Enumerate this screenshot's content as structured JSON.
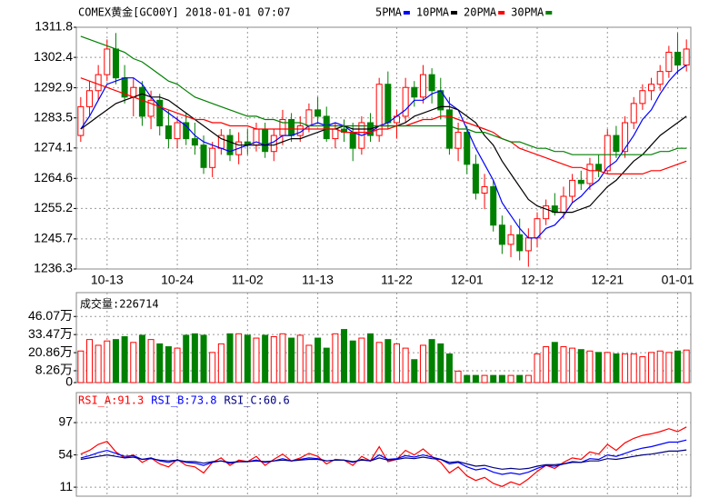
{
  "chart_data": [
    {
      "type": "candlestick",
      "title": "COMEX黄金[GC00Y] 2018-01-01 07:07",
      "categories": [
        null,
        null,
        null,
        "10-13",
        null,
        null,
        null,
        null,
        null,
        null,
        null,
        "10-24",
        null,
        null,
        null,
        null,
        null,
        null,
        null,
        "11-02",
        null,
        null,
        null,
        null,
        null,
        null,
        null,
        "11-13",
        null,
        null,
        null,
        null,
        null,
        null,
        null,
        null,
        "11-22",
        null,
        null,
        null,
        null,
        null,
        null,
        null,
        "12-01",
        null,
        null,
        null,
        null,
        null,
        null,
        null,
        "12-12",
        null,
        null,
        null,
        null,
        null,
        null,
        null,
        "12-21",
        null,
        null,
        null,
        null,
        null,
        null,
        null,
        "01-01",
        null
      ],
      "open": [
        1278,
        1287,
        1292,
        1297,
        1305,
        1296,
        1290,
        1293,
        1284,
        1289,
        1281,
        1277,
        1282,
        1277,
        1275,
        1268,
        1274,
        1278,
        1272,
        1276,
        1275,
        1280,
        1273,
        1278,
        1283,
        1278,
        1281,
        1286,
        1284,
        1277,
        1280,
        1279,
        1274,
        1282,
        1278,
        1294,
        1282,
        1284,
        1293,
        1290,
        1297,
        1292,
        1286,
        1274,
        1279,
        1269,
        1260,
        1262,
        1250,
        1244,
        1247,
        1242,
        1246,
        1252,
        1256,
        1254,
        1259,
        1264,
        1263,
        1269,
        1267,
        1278,
        1273,
        1282,
        1288,
        1292,
        1294,
        1298,
        1304,
        1300
      ],
      "high": [
        1290,
        1295,
        1300,
        1308,
        1310,
        1300,
        1296,
        1295,
        1292,
        1291,
        1286,
        1284,
        1285,
        1282,
        1278,
        1276,
        1280,
        1280,
        1279,
        1280,
        1282,
        1282,
        1280,
        1286,
        1285,
        1284,
        1288,
        1290,
        1287,
        1282,
        1283,
        1282,
        1284,
        1285,
        1296,
        1298,
        1286,
        1296,
        1295,
        1300,
        1299,
        1296,
        1290,
        1282,
        1281,
        1272,
        1266,
        1264,
        1253,
        1250,
        1252,
        1249,
        1254,
        1258,
        1260,
        1262,
        1266,
        1267,
        1271,
        1272,
        1280,
        1281,
        1284,
        1290,
        1294,
        1296,
        1300,
        1306,
        1310,
        1308
      ],
      "low": [
        1276,
        1284,
        1289,
        1295,
        1294,
        1288,
        1284,
        1281,
        1280,
        1278,
        1274,
        1274,
        1275,
        1272,
        1266,
        1265,
        1272,
        1270,
        1269,
        1272,
        1273,
        1271,
        1270,
        1275,
        1276,
        1276,
        1279,
        1282,
        1276,
        1274,
        1276,
        1270,
        1272,
        1276,
        1276,
        1280,
        1277,
        1282,
        1287,
        1288,
        1288,
        1283,
        1272,
        1270,
        1266,
        1258,
        1255,
        1248,
        1241,
        1240,
        1239,
        1237,
        1243,
        1250,
        1253,
        1252,
        1257,
        1261,
        1261,
        1265,
        1266,
        1271,
        1271,
        1280,
        1286,
        1289,
        1292,
        1296,
        1297,
        1298
      ],
      "close": [
        1287,
        1292,
        1297,
        1305,
        1296,
        1290,
        1293,
        1284,
        1289,
        1281,
        1277,
        1282,
        1277,
        1275,
        1268,
        1274,
        1278,
        1272,
        1276,
        1275,
        1280,
        1273,
        1278,
        1283,
        1278,
        1281,
        1286,
        1284,
        1277,
        1280,
        1279,
        1274,
        1282,
        1278,
        1294,
        1282,
        1284,
        1293,
        1290,
        1297,
        1292,
        1286,
        1274,
        1279,
        1269,
        1260,
        1262,
        1250,
        1244,
        1247,
        1242,
        1246,
        1252,
        1256,
        1254,
        1259,
        1264,
        1263,
        1269,
        1267,
        1278,
        1273,
        1282,
        1288,
        1292,
        1294,
        1298,
        1304,
        1300,
        1305
      ],
      "up_color": "#ff0000",
      "down_color": "#008000",
      "series": [
        {
          "name": "5PMA",
          "color": "#0000ff",
          "values": [
            1280,
            1284,
            1289,
            1294,
            1295,
            1296,
            1296,
            1294,
            1290,
            1287,
            1285,
            1283,
            1281,
            1278,
            1276,
            1275,
            1274,
            1273,
            1274,
            1275,
            1276,
            1275,
            1276,
            1278,
            1278,
            1279,
            1281,
            1282,
            1281,
            1282,
            1281,
            1279,
            1278,
            1279,
            1281,
            1282,
            1284,
            1286,
            1289,
            1289,
            1291,
            1292,
            1288,
            1286,
            1280,
            1274,
            1269,
            1264,
            1257,
            1253,
            1249,
            1246,
            1246,
            1249,
            1250,
            1253,
            1257,
            1259,
            1262,
            1264,
            1268,
            1270,
            1274,
            1278,
            1283,
            1286,
            1291,
            1295,
            1298,
            1300
          ]
        },
        {
          "name": "10PMA",
          "color": "#000000",
          "values": [
            1280,
            1282,
            1284,
            1286,
            1288,
            1289,
            1290,
            1291,
            1290,
            1290,
            1289,
            1287,
            1285,
            1283,
            1281,
            1279,
            1277,
            1276,
            1275,
            1275,
            1275,
            1275,
            1275,
            1276,
            1277,
            1277,
            1278,
            1279,
            1280,
            1280,
            1281,
            1280,
            1280,
            1280,
            1281,
            1281,
            1281,
            1282,
            1284,
            1285,
            1286,
            1287,
            1287,
            1286,
            1284,
            1282,
            1278,
            1275,
            1270,
            1266,
            1262,
            1258,
            1256,
            1255,
            1254,
            1254,
            1254,
            1255,
            1256,
            1259,
            1262,
            1264,
            1267,
            1270,
            1272,
            1275,
            1278,
            1280,
            1282,
            1284
          ]
        },
        {
          "name": "20PMA",
          "color": "#ff0000",
          "values": [
            1296,
            1295,
            1294,
            1293,
            1292,
            1291,
            1290,
            1289,
            1288,
            1287,
            1286,
            1285,
            1284,
            1283,
            1283,
            1282,
            1282,
            1281,
            1281,
            1281,
            1280,
            1280,
            1280,
            1280,
            1280,
            1280,
            1280,
            1280,
            1280,
            1280,
            1279,
            1279,
            1279,
            1279,
            1280,
            1280,
            1281,
            1281,
            1282,
            1283,
            1283,
            1284,
            1284,
            1283,
            1282,
            1281,
            1280,
            1279,
            1277,
            1276,
            1274,
            1273,
            1272,
            1271,
            1270,
            1269,
            1268,
            1268,
            1267,
            1267,
            1266,
            1266,
            1266,
            1266,
            1266,
            1267,
            1267,
            1268,
            1269,
            1270
          ]
        },
        {
          "name": "30PMA",
          "color": "#008000",
          "values": [
            1309,
            1308,
            1307,
            1306,
            1305,
            1304,
            1302,
            1301,
            1299,
            1297,
            1295,
            1294,
            1292,
            1290,
            1289,
            1288,
            1287,
            1286,
            1285,
            1284,
            1284,
            1283,
            1283,
            1282,
            1282,
            1282,
            1281,
            1281,
            1281,
            1281,
            1281,
            1281,
            1281,
            1281,
            1281,
            1281,
            1281,
            1281,
            1281,
            1281,
            1281,
            1281,
            1281,
            1280,
            1280,
            1279,
            1279,
            1278,
            1277,
            1276,
            1276,
            1275,
            1274,
            1274,
            1273,
            1273,
            1272,
            1272,
            1272,
            1272,
            1272,
            1272,
            1272,
            1272,
            1272,
            1272,
            1273,
            1273,
            1274,
            1274
          ]
        }
      ],
      "ylim": [
        1236.3,
        1311.8
      ],
      "yticks": [
        1311.8,
        1302.4,
        1292.9,
        1283.5,
        1274.1,
        1264.6,
        1255.2,
        1245.7,
        1236.3
      ],
      "grid": true
    },
    {
      "type": "bar",
      "title": "成交量:226714",
      "values": [
        22,
        30,
        26,
        29,
        30,
        32,
        28,
        33,
        30,
        27,
        25,
        24,
        33,
        34,
        33,
        21,
        27,
        34,
        34,
        33,
        31,
        33,
        32,
        34,
        31,
        33,
        26,
        31,
        24,
        34,
        37,
        29,
        31,
        34,
        28,
        30,
        27,
        24,
        16,
        26,
        30,
        27,
        20,
        8,
        5,
        5,
        5,
        5,
        5,
        5,
        5,
        5,
        20,
        25,
        28,
        25,
        24,
        23,
        22,
        21,
        21,
        20,
        20,
        20,
        18,
        21,
        22,
        21,
        22,
        22.6714
      ],
      "ylim": [
        0,
        62.7
      ],
      "yticks": [
        {
          "value": 46.07,
          "label": "46.07万"
        },
        {
          "value": 33.47,
          "label": "33.47万"
        },
        {
          "value": 20.86,
          "label": "20.86万"
        },
        {
          "value": 8.26,
          "label": "8.26万"
        },
        0
      ],
      "grid": true
    },
    {
      "type": "line",
      "series": [
        {
          "name": "RSI_A:91.3",
          "color": "#ff0000",
          "values": [
            55,
            60,
            68,
            72,
            58,
            50,
            54,
            44,
            50,
            42,
            38,
            48,
            40,
            38,
            30,
            44,
            50,
            40,
            47,
            45,
            52,
            40,
            48,
            55,
            46,
            50,
            56,
            52,
            42,
            48,
            47,
            40,
            52,
            46,
            65,
            45,
            48,
            60,
            54,
            62,
            52,
            44,
            30,
            38,
            26,
            20,
            24,
            16,
            12,
            18,
            14,
            22,
            32,
            40,
            36,
            44,
            50,
            48,
            58,
            55,
            68,
            60,
            70,
            76,
            80,
            82,
            85,
            89,
            85,
            91.3
          ]
        },
        {
          "name": "RSI_B:73.8",
          "color": "#0000ff",
          "values": [
            50,
            53,
            57,
            60,
            56,
            52,
            53,
            48,
            50,
            46,
            44,
            47,
            44,
            43,
            40,
            44,
            46,
            43,
            45,
            45,
            47,
            44,
            46,
            49,
            46,
            48,
            50,
            49,
            46,
            47,
            47,
            44,
            48,
            46,
            54,
            48,
            49,
            53,
            51,
            54,
            51,
            48,
            42,
            44,
            38,
            34,
            36,
            31,
            28,
            30,
            28,
            31,
            36,
            40,
            39,
            42,
            45,
            44,
            49,
            48,
            54,
            52,
            56,
            60,
            63,
            65,
            68,
            71,
            71,
            73.8
          ]
        },
        {
          "name": "RSI_C:60.6",
          "color": "#000080",
          "values": [
            48,
            50,
            52,
            54,
            52,
            50,
            51,
            48,
            49,
            47,
            46,
            47,
            45,
            45,
            43,
            45,
            46,
            44,
            45,
            45,
            46,
            45,
            46,
            47,
            46,
            47,
            48,
            48,
            46,
            47,
            47,
            45,
            47,
            46,
            50,
            47,
            48,
            50,
            49,
            51,
            49,
            48,
            44,
            45,
            42,
            39,
            40,
            37,
            35,
            36,
            35,
            36,
            39,
            41,
            41,
            42,
            44,
            44,
            46,
            46,
            49,
            48,
            50,
            52,
            54,
            55,
            57,
            59,
            59,
            60.6
          ]
        }
      ],
      "ylim": [
        -1,
        137
      ],
      "yticks": [
        97,
        54,
        11
      ],
      "grid": true
    }
  ]
}
